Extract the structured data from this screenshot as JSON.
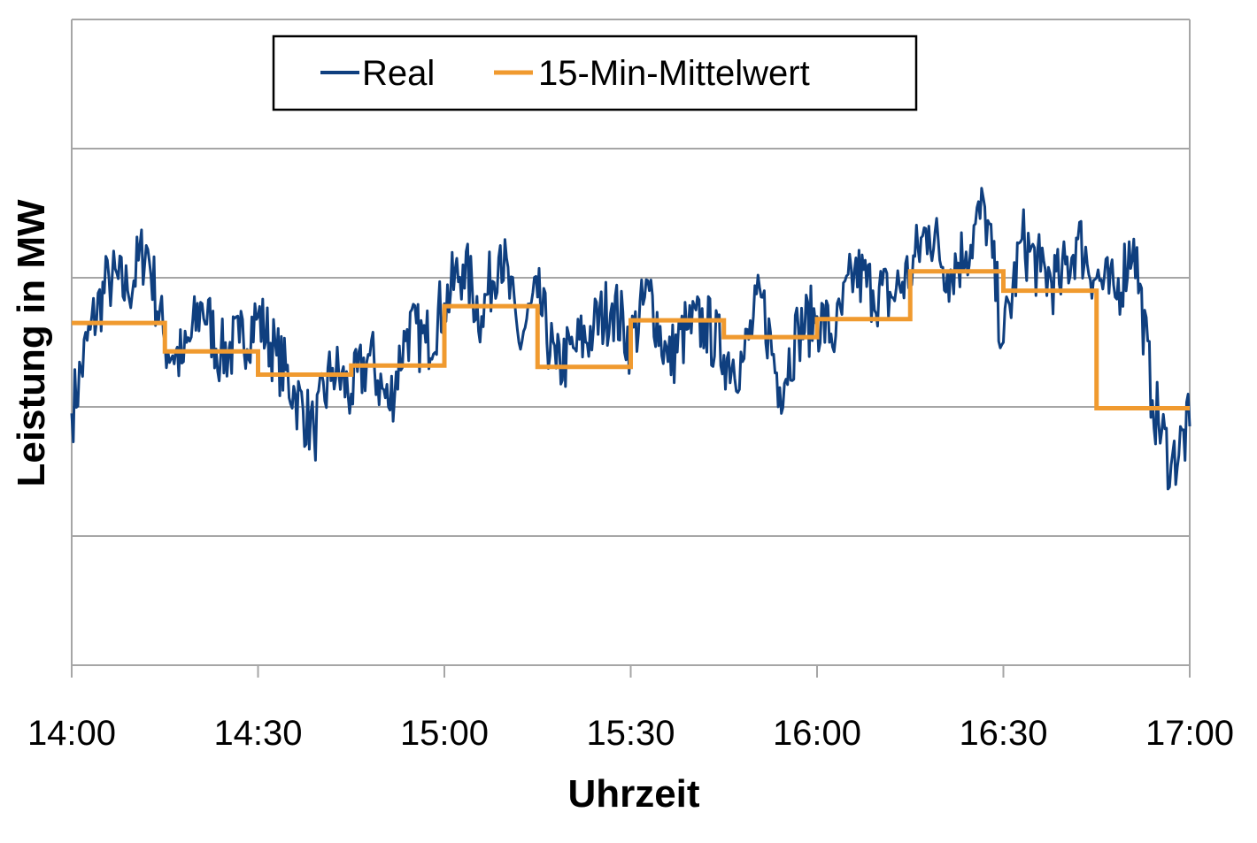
{
  "chart_data": {
    "type": "line",
    "title": "",
    "xlabel": "Uhrzeit",
    "ylabel": "Leistung in MW",
    "x_tick_labels": [
      "14:00",
      "14:30",
      "15:00",
      "15:30",
      "16:00",
      "16:30",
      "17:00"
    ],
    "x_range_minutes": [
      0,
      180
    ],
    "y_range": [
      0,
      5
    ],
    "y_gridlines": [
      1,
      2,
      3,
      4
    ],
    "y_tick_labels_shown": false,
    "grid": true,
    "legend_position": "top-center",
    "series": [
      {
        "name": "Real",
        "color": "#0f3f7f",
        "x_minutes": [
          0,
          3,
          6,
          9,
          12,
          15,
          18,
          21,
          24,
          27,
          30,
          33,
          36,
          39,
          42,
          45,
          48,
          51,
          54,
          57,
          60,
          63,
          66,
          69,
          72,
          75,
          78,
          81,
          84,
          87,
          90,
          93,
          96,
          99,
          102,
          105,
          108,
          111,
          114,
          117,
          120,
          123,
          126,
          129,
          132,
          135,
          138,
          141,
          144,
          147,
          150,
          153,
          156,
          159,
          162,
          165,
          168,
          171,
          174,
          177,
          180
        ],
        "values": [
          1.95,
          2.6,
          3.0,
          2.9,
          3.25,
          2.5,
          2.35,
          2.8,
          2.4,
          2.5,
          2.7,
          2.4,
          2.1,
          1.8,
          2.3,
          2.1,
          2.4,
          2.0,
          2.6,
          2.5,
          2.8,
          3.1,
          2.7,
          3.25,
          2.5,
          2.85,
          2.3,
          2.45,
          2.6,
          2.8,
          2.5,
          2.9,
          2.35,
          2.6,
          2.65,
          2.4,
          2.35,
          2.85,
          2.15,
          2.6,
          2.7,
          2.55,
          3.05,
          2.9,
          2.85,
          3.05,
          3.4,
          3.05,
          3.2,
          3.55,
          2.5,
          3.3,
          3.05,
          2.95,
          3.3,
          3.0,
          2.85,
          3.3,
          2.05,
          1.55,
          1.85
        ]
      },
      {
        "name": "15-Min-Mittelwert",
        "color": "#f09a2f",
        "step": "post",
        "x_minutes": [
          0,
          15,
          30,
          45,
          60,
          75,
          90,
          105,
          120,
          135,
          150,
          165,
          180
        ],
        "values": [
          2.65,
          2.43,
          2.25,
          2.32,
          2.78,
          2.31,
          2.67,
          2.54,
          2.68,
          3.05,
          2.9,
          1.99,
          1.99
        ]
      }
    ]
  }
}
